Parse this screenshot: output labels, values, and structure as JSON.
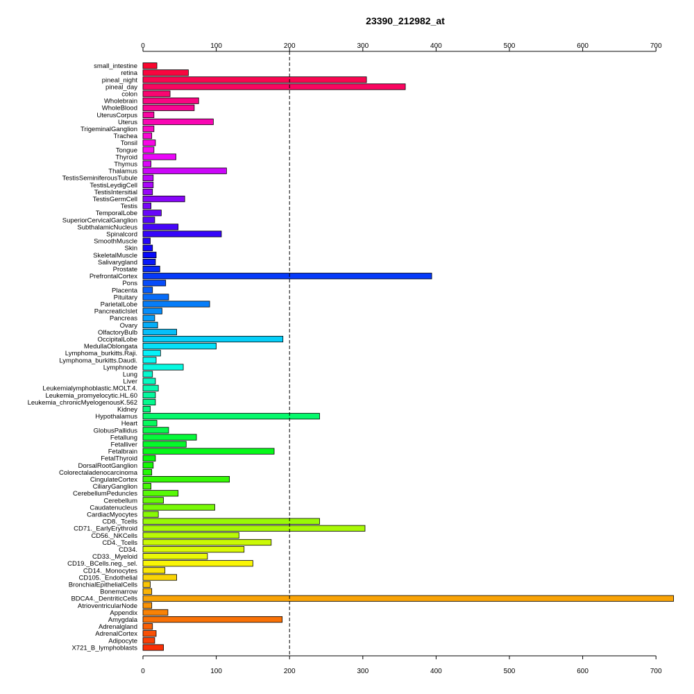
{
  "chart_data": {
    "type": "bar",
    "orientation": "horizontal",
    "title": "23390_212982_at",
    "xlabel": "",
    "ylabel": "",
    "xlim": [
      0,
      700
    ],
    "xticks": [
      0,
      100,
      200,
      300,
      400,
      500,
      600,
      700
    ],
    "axis_positions": [
      "top",
      "bottom"
    ],
    "reference_line": {
      "x": 200,
      "style": "dashed"
    },
    "grid": false,
    "legend": "none",
    "color_scheme": "rainbow (red to orange, top to bottom)",
    "categories": [
      "small_intestine",
      "retina",
      "pineal_night",
      "pineal_day",
      "colon",
      "Wholebrain",
      "WholeBlood",
      "UterusCorpus",
      "Uterus",
      "TrigeminalGanglion",
      "Trachea",
      "Tonsil",
      "Tongue",
      "Thyroid",
      "Thymus",
      "Thalamus",
      "TestisSeminiferousTubule",
      "TestisLeydigCell",
      "TestisIntersitial",
      "TestisGermCell",
      "Testis",
      "TemporalLobe",
      "SuperiorCervicalGanglion",
      "SubthalamicNucleus",
      "Spinalcord",
      "SmoothMuscle",
      "Skin",
      "SkeletalMuscle",
      "Salivarygland",
      "Prostate",
      "PrefrontalCortex",
      "Pons",
      "Placenta",
      "Pituitary",
      "ParietalLobe",
      "PancreaticIslet",
      "Pancreas",
      "Ovary",
      "OlfactoryBulb",
      "OccipitalLobe",
      "MedullaOblongata",
      "Lymphoma_burkitts.Raji.",
      "Lymphoma_burkitts.Daudi.",
      "Lymphnode",
      "Lung",
      "Liver",
      "Leukemialymphoblastic.MOLT.4.",
      "Leukemia_promyelocytic.HL.60",
      "Leukemia_chronicMyelogenousK.562",
      "Kidney",
      "Hypothalamus",
      "Heart",
      "GlobusPallidus",
      "Fetallung",
      "Fetalliver",
      "Fetalbrain",
      "FetalThyroid",
      "DorsalRootGanglion",
      "Colorectaladenocarcinoma",
      "CingulateCortex",
      "CiliaryGanglion",
      "CerebellumPeduncles",
      "Cerebellum",
      "Caudatenucleus",
      "CardiacMyocytes",
      "CD8._Tcells",
      "CD71._EarlyErythroid",
      "CD56._NKCells",
      "CD4._Tcells",
      "CD34.",
      "CD33._Myeloid",
      "CD19._BCells.neg._sel.",
      "CD14._Monocytes",
      "CD105._Endothelial",
      "BronchialEpithelialCells",
      "Bonemarrow",
      "BDCA4._DentriticCells",
      "AtrioventricularNode",
      "Appendix",
      "Amygdala",
      "Adrenalgland",
      "AdrenalCortex",
      "Adipocyte",
      "X721_B_lymphoblasts"
    ],
    "values": [
      19,
      62,
      305,
      358,
      37,
      76,
      70,
      15,
      96,
      15,
      12,
      17,
      15,
      45,
      11,
      114,
      14,
      14,
      13,
      57,
      11,
      25,
      16,
      48,
      107,
      10,
      13,
      18,
      17,
      23,
      394,
      31,
      13,
      35,
      91,
      26,
      16,
      20,
      46,
      191,
      100,
      24,
      18,
      55,
      13,
      17,
      21,
      17,
      17,
      10,
      241,
      19,
      35,
      73,
      59,
      179,
      17,
      14,
      12,
      118,
      11,
      48,
      28,
      98,
      21,
      241,
      303,
      131,
      175,
      138,
      88,
      150,
      30,
      46,
      10,
      12,
      724,
      12,
      34,
      190,
      13,
      18,
      16,
      28
    ]
  }
}
